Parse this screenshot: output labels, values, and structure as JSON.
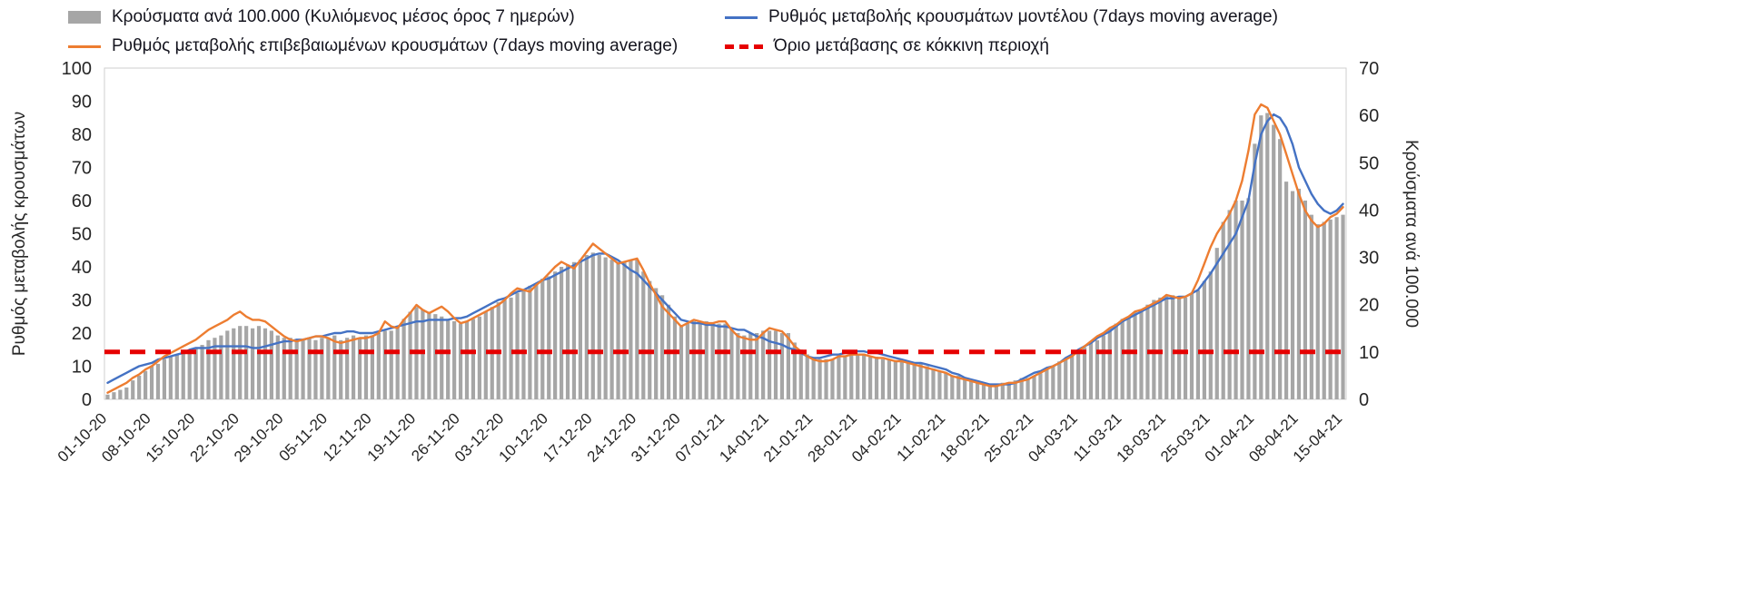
{
  "legend": {
    "items": [
      {
        "label": "Κρούσματα ανά 100.000 (Κυλιόμενος μέσος όρος 7 ημερών)",
        "swatch": "bar"
      },
      {
        "label": "Ρυθμός μεταβολής κρουσμάτων μοντέλου (7days moving average)",
        "swatch": "line-blue"
      },
      {
        "label": "Ρυθμός μεταβολής επιβεβαιωμένων κρουσμάτων (7days moving average)",
        "swatch": "line-orange"
      },
      {
        "label": "Όριο μετάβασης σε κόκκινη περιοχή",
        "swatch": "dash-red"
      }
    ]
  },
  "axes": {
    "left_title": "Ρυθμός μεταβολής κρουσμάτων",
    "right_title": "Κρούσματα ανά 100.000"
  },
  "colors": {
    "bars": "#a6a6a6",
    "model_line": "#4472c4",
    "confirmed_line": "#ed7d31",
    "threshold_line": "#e60000",
    "tick_text": "#262626"
  },
  "chart_data": {
    "type": "combo",
    "n_points": 197,
    "x_tick_interval_days": 7,
    "x_tick_labels": [
      "01-10-20",
      "08-10-20",
      "15-10-20",
      "22-10-20",
      "29-10-20",
      "05-11-20",
      "12-11-20",
      "19-11-20",
      "26-11-20",
      "03-12-20",
      "10-12-20",
      "17-12-20",
      "24-12-20",
      "31-12-20",
      "07-01-21",
      "14-01-21",
      "21-01-21",
      "28-01-21",
      "04-02-21",
      "11-02-21",
      "18-02-21",
      "25-02-21",
      "04-03-21",
      "11-03-21",
      "18-03-21",
      "25-03-21",
      "01-04-21",
      "08-04-21",
      "15-04-21"
    ],
    "left_axis": {
      "title": "Ρυθμός μεταβολής κρουσμάτων",
      "range": [
        0,
        100
      ],
      "ticks": [
        0,
        10,
        20,
        30,
        40,
        50,
        60,
        70,
        80,
        90,
        100
      ]
    },
    "right_axis": {
      "title": "Κρούσματα ανά 100.000",
      "range": [
        0,
        70
      ],
      "ticks": [
        0,
        10,
        20,
        30,
        40,
        50,
        60,
        70
      ]
    },
    "grid": false,
    "legend_position": "top",
    "series": [
      {
        "name": "Κρούσματα ανά 100.000 (Κυλιόμενος μέσος όρος 7 ημερών)",
        "type": "bar",
        "axis": "right",
        "color": "#a6a6a6",
        "values": [
          1,
          1.5,
          2,
          2.5,
          4,
          5,
          6,
          7,
          7.5,
          8.5,
          9,
          9.5,
          10,
          10.5,
          11,
          11.5,
          12.5,
          13,
          13.5,
          14.5,
          15,
          15.5,
          15.5,
          15,
          15.5,
          15,
          14.5,
          13.5,
          13,
          13,
          12.5,
          12.5,
          13,
          12.5,
          13,
          13,
          13.5,
          12.5,
          13,
          13.5,
          13,
          13.5,
          13.5,
          14,
          14.5,
          14.5,
          15.5,
          17,
          18.5,
          19.5,
          19,
          18.5,
          18,
          17.5,
          17,
          16.5,
          16,
          16.5,
          17,
          17.5,
          18.5,
          19.5,
          20.5,
          21,
          21.5,
          22.5,
          23,
          24,
          24.5,
          25.5,
          26,
          27,
          28,
          28.5,
          29,
          29.5,
          30.5,
          31,
          30.5,
          30,
          29.5,
          29,
          29,
          29.5,
          29.5,
          27,
          25,
          23.5,
          22,
          20,
          17.5,
          15.5,
          16,
          16.5,
          16.5,
          16.5,
          16,
          16,
          16,
          15,
          14,
          13.5,
          14,
          14,
          14.5,
          14.5,
          14.5,
          14,
          14,
          12,
          10.5,
          9.5,
          8.5,
          8.5,
          8.5,
          8.5,
          9,
          9,
          9.5,
          9.5,
          9.5,
          9,
          9,
          8.5,
          8.5,
          8,
          8,
          8,
          7.5,
          7.5,
          7,
          6.5,
          6,
          5.5,
          5,
          5,
          4.5,
          4,
          3.5,
          3,
          3,
          3,
          3.5,
          3.5,
          4,
          4.5,
          4.5,
          5,
          5.5,
          6.5,
          7,
          8,
          8.5,
          9.5,
          10,
          11,
          12,
          12.5,
          13.5,
          15,
          16,
          17,
          17.5,
          18.5,
          19,
          20,
          21,
          21.5,
          22,
          22,
          21.5,
          21.5,
          22.5,
          23,
          25,
          27,
          32,
          37.5,
          40,
          42,
          42,
          42.5,
          54,
          60,
          60.5,
          58,
          55,
          46,
          44,
          44.5,
          42,
          39,
          37,
          37.5,
          38,
          38.5,
          39
        ]
      },
      {
        "name": "Ρυθμός μεταβολής κρουσμάτων μοντέλου (7days moving average)",
        "type": "line",
        "axis": "left",
        "color": "#4472c4",
        "values": [
          5,
          6,
          7,
          8,
          9,
          10,
          10.5,
          11,
          12,
          12.5,
          13,
          13.5,
          14,
          15,
          15.5,
          15.5,
          15.5,
          16,
          16,
          16,
          16,
          16,
          16,
          15.5,
          15.5,
          16,
          16.5,
          17,
          17.5,
          17.5,
          18,
          18,
          18.5,
          19,
          19,
          19.5,
          20,
          20,
          20.5,
          20.5,
          20,
          20,
          20,
          20.5,
          21,
          21.5,
          22,
          22.5,
          23,
          23.5,
          23.5,
          24,
          24,
          24,
          24,
          24.5,
          24.5,
          25,
          26,
          27,
          28,
          29,
          30,
          30.5,
          31.5,
          32.5,
          33,
          34,
          35,
          36,
          36.5,
          37.5,
          38.5,
          39.5,
          40.5,
          41.5,
          42.5,
          43.5,
          44,
          44,
          43,
          42,
          40.5,
          39,
          38,
          36,
          34,
          32,
          30,
          28,
          26,
          24,
          23.5,
          23,
          23,
          22.5,
          22.5,
          22,
          22,
          21.5,
          21,
          21,
          20,
          19,
          18.5,
          17.5,
          17,
          16.5,
          15.5,
          15,
          14,
          13,
          12.5,
          12.5,
          13,
          13.5,
          13.5,
          14,
          14.5,
          14.5,
          14.5,
          14,
          14,
          13.5,
          13,
          12.5,
          12,
          11.5,
          11,
          11,
          10.5,
          10,
          9.5,
          9,
          8,
          7.5,
          6.5,
          6,
          5.5,
          5,
          4.5,
          4.5,
          4.5,
          4.5,
          5,
          6,
          7,
          8,
          8.5,
          9.5,
          10,
          11,
          12.5,
          13.5,
          15,
          16,
          17,
          18.5,
          19.5,
          20.5,
          22,
          23.5,
          24.5,
          25.5,
          26.5,
          27.5,
          28.5,
          29.5,
          30.5,
          30.5,
          31,
          31,
          32,
          33,
          35.5,
          38,
          41,
          44,
          47,
          50,
          55,
          60,
          71,
          80,
          84,
          86,
          85,
          82,
          77,
          70,
          66,
          62,
          59,
          57,
          56,
          57,
          59
        ]
      },
      {
        "name": "Ρυθμός μεταβολής επιβεβαιωμένων κρουσμάτων (7days moving average)",
        "type": "line",
        "axis": "left",
        "color": "#ed7d31",
        "values": [
          2,
          3,
          4,
          5,
          6.5,
          7.5,
          9,
          10,
          11.5,
          13,
          14,
          15,
          16,
          17,
          18,
          19.5,
          21,
          22,
          23,
          24,
          25.5,
          26.5,
          25,
          24,
          24,
          23.5,
          22,
          20.5,
          19,
          18,
          17.5,
          18,
          18.5,
          19,
          19,
          18.5,
          17.5,
          17,
          17.5,
          18,
          18.5,
          18.5,
          19,
          20,
          23.5,
          22,
          21.5,
          24,
          26,
          28.5,
          27,
          26,
          27,
          28,
          26.5,
          24.5,
          23,
          23.5,
          24.5,
          25.5,
          26.5,
          27.5,
          28.5,
          30,
          32,
          33.5,
          33,
          32.5,
          34.5,
          36,
          38,
          40,
          41.5,
          40.5,
          39.5,
          42,
          44.5,
          47,
          45.5,
          44,
          42.5,
          41,
          41.5,
          42,
          42.5,
          39,
          35,
          31.5,
          28,
          26,
          24,
          22,
          23,
          24,
          23.5,
          23,
          23,
          23.5,
          23.5,
          21,
          19,
          18.5,
          18,
          18,
          20,
          21.5,
          21,
          20.5,
          18.5,
          16,
          14.5,
          13,
          12,
          11.5,
          11.5,
          12,
          13,
          13,
          13.5,
          13.5,
          13.5,
          13,
          12.5,
          12.5,
          12,
          11.5,
          11.5,
          11,
          10.5,
          10,
          9.5,
          9,
          8.5,
          8,
          7,
          6.5,
          6,
          5.5,
          5,
          4.5,
          4,
          4,
          4.5,
          5,
          5,
          5.5,
          6,
          7,
          8,
          9,
          10,
          11,
          12,
          13,
          14.5,
          16,
          17.5,
          19,
          20,
          21.5,
          22.5,
          24,
          25,
          26.5,
          27,
          28,
          29,
          30,
          31.5,
          31,
          30.5,
          31,
          32,
          36,
          41,
          46,
          50,
          53,
          56,
          60,
          66,
          75,
          86,
          89,
          88,
          84,
          80,
          74,
          68,
          62,
          57,
          54,
          52,
          53,
          55,
          56,
          58
        ]
      },
      {
        "name": "Όριο μετάβασης σε κόκκινη περιοχή",
        "type": "threshold",
        "axis": "left",
        "color": "#e60000",
        "value_left_axis": 14.3,
        "value_right_axis": 10
      }
    ]
  }
}
